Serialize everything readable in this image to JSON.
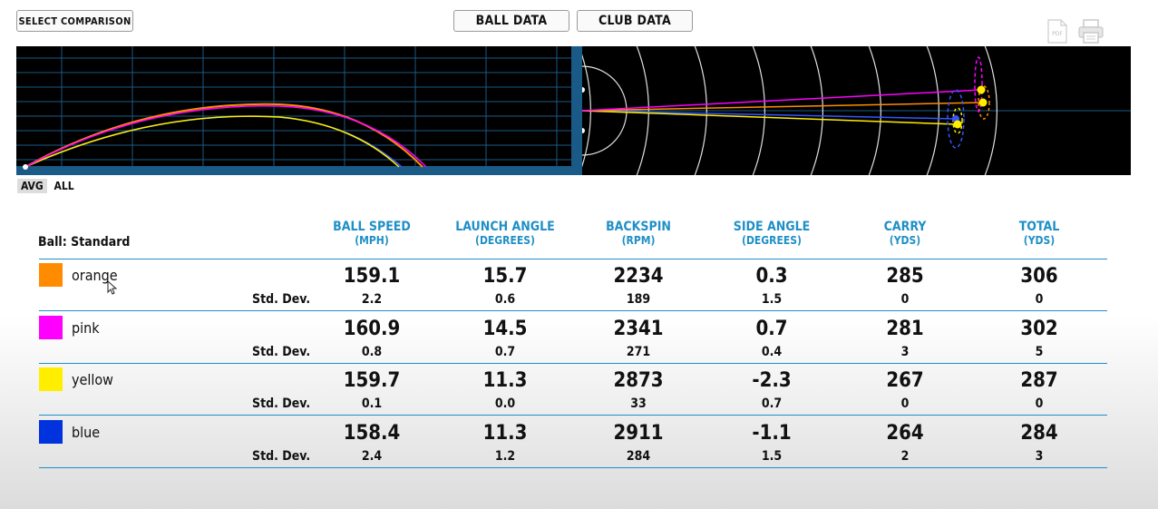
{
  "toolbar": {
    "select_comparison": "SELECT COMPARISON",
    "ball_data": "BALL DATA",
    "club_data": "CLUB DATA",
    "pdf_label": "PDF"
  },
  "view_toggle": {
    "avg": "AVG",
    "all": "ALL"
  },
  "table": {
    "ball_label": "Ball: Standard",
    "std_dev_label": "Std. Dev.",
    "columns": [
      {
        "title": "BALL SPEED",
        "unit": "(MPH)"
      },
      {
        "title": "LAUNCH ANGLE",
        "unit": "(DEGREES)"
      },
      {
        "title": "BACKSPIN",
        "unit": "(RPM)"
      },
      {
        "title": "SIDE ANGLE",
        "unit": "(DEGREES)"
      },
      {
        "title": "CARRY",
        "unit": "(YDS)"
      },
      {
        "title": "TOTAL",
        "unit": "(YDS)"
      }
    ],
    "rows": [
      {
        "name": "orange",
        "color": "#ff8c00",
        "values": [
          "159.1",
          "15.7",
          "2234",
          "0.3",
          "285",
          "306"
        ],
        "std": [
          "2.2",
          "0.6",
          "189",
          "1.5",
          "0",
          "0"
        ]
      },
      {
        "name": "pink",
        "color": "#ff00ff",
        "values": [
          "160.9",
          "14.5",
          "2341",
          "0.7",
          "281",
          "302"
        ],
        "std": [
          "0.8",
          "0.7",
          "271",
          "0.4",
          "3",
          "5"
        ]
      },
      {
        "name": "yellow",
        "color": "#ffee00",
        "values": [
          "159.7",
          "11.3",
          "2873",
          "-2.3",
          "267",
          "287"
        ],
        "std": [
          "0.1",
          "0.0",
          "33",
          "0.7",
          "0",
          "0"
        ]
      },
      {
        "name": "blue",
        "color": "#0033dd",
        "values": [
          "158.4",
          "11.3",
          "2911",
          "-1.1",
          "264",
          "284"
        ],
        "std": [
          "2.4",
          "1.2",
          "284",
          "1.5",
          "2",
          "3"
        ]
      }
    ]
  },
  "colors": {
    "accent": "#1f8fc6",
    "grid": "#1a5a86",
    "panel_bg": "#000000"
  }
}
